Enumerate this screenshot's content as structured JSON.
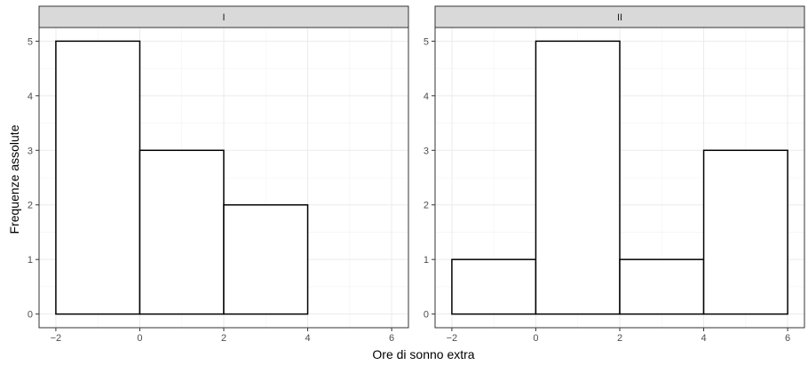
{
  "chart_data": {
    "type": "bar",
    "style": "histogram",
    "xlabel": "Ore di sonno extra",
    "ylabel": "Frequenze assolute",
    "xlim": [
      -2.4,
      6.4
    ],
    "ylim": [
      -0.25,
      5.25
    ],
    "x_ticks": [
      -2,
      0,
      2,
      4,
      6
    ],
    "x_tick_labels": [
      "−2",
      "0",
      "2",
      "4",
      "6"
    ],
    "y_ticks": [
      0,
      1,
      2,
      3,
      4,
      5
    ],
    "y_tick_labels": [
      "0",
      "1",
      "2",
      "3",
      "4",
      "5"
    ],
    "bin_width": 2,
    "bin_edges": [
      -2,
      0,
      2,
      4,
      6
    ],
    "grid": true,
    "colors": {
      "bar_fill": "#ffffff",
      "bar_stroke": "#000000",
      "strip_fill": "#d9d9d9",
      "grid": "#ebebeb",
      "panel_border": "#333333"
    },
    "panels": [
      {
        "strip_label": "I",
        "counts": [
          5,
          3,
          2,
          0
        ]
      },
      {
        "strip_label": "II",
        "counts": [
          1,
          5,
          1,
          3
        ]
      }
    ]
  }
}
